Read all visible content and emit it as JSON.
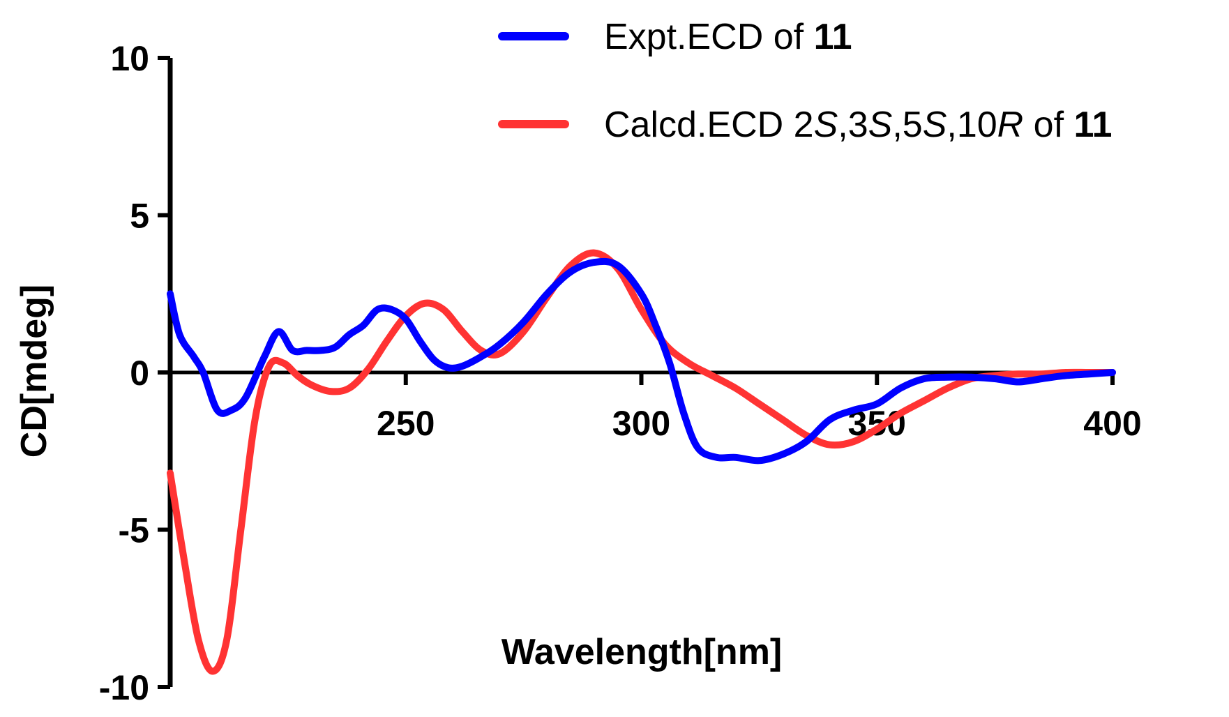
{
  "chart_data": {
    "type": "line",
    "xlabel": "Wavelength[nm]",
    "ylabel": "CD[mdeg]",
    "xlim": [
      200,
      400
    ],
    "ylim": [
      -10,
      10
    ],
    "xticks": [
      250,
      300,
      350,
      400
    ],
    "xtick_labels": [
      "250",
      "300",
      "350",
      "400"
    ],
    "yticks": [
      10,
      5,
      0,
      -5,
      -10
    ],
    "ytick_labels": [
      "10",
      "5",
      "0",
      "-5",
      "-10"
    ],
    "grid": false,
    "legend_position": "top-right",
    "series": [
      {
        "name": "Expt.ECD of 11",
        "legend": [
          {
            "text": "Expt.ECD of ",
            "style": "normal"
          },
          {
            "text": "11",
            "style": "bold"
          }
        ],
        "color": "#0000ff",
        "x": [
          200,
          202,
          205,
          207,
          210,
          213,
          216,
          220,
          223,
          226,
          229,
          232,
          235,
          238,
          241,
          244,
          247,
          250,
          253,
          256,
          259,
          262,
          266,
          270,
          275,
          280,
          285,
          290,
          295,
          300,
          303,
          306,
          309,
          312,
          316,
          320,
          325,
          330,
          335,
          340,
          345,
          350,
          355,
          360,
          365,
          370,
          375,
          380,
          385,
          390,
          395,
          400
        ],
        "y": [
          2.5,
          1.2,
          0.5,
          0.0,
          -1.2,
          -1.2,
          -0.8,
          0.5,
          1.3,
          0.7,
          0.7,
          0.7,
          0.8,
          1.2,
          1.5,
          2.0,
          2.0,
          1.7,
          1.0,
          0.4,
          0.15,
          0.2,
          0.5,
          0.9,
          1.6,
          2.5,
          3.2,
          3.5,
          3.4,
          2.5,
          1.5,
          0.3,
          -1.3,
          -2.4,
          -2.7,
          -2.7,
          -2.8,
          -2.6,
          -2.2,
          -1.5,
          -1.2,
          -1.0,
          -0.5,
          -0.2,
          -0.15,
          -0.15,
          -0.2,
          -0.3,
          -0.2,
          -0.1,
          -0.05,
          0.0
        ]
      },
      {
        "name": "Calcd.ECD 2S,3S,5S,10R of 11",
        "legend": [
          {
            "text": "Calcd.ECD 2",
            "style": "normal"
          },
          {
            "text": "S",
            "style": "italic"
          },
          {
            "text": ",3",
            "style": "normal"
          },
          {
            "text": "S",
            "style": "italic"
          },
          {
            "text": ",5",
            "style": "normal"
          },
          {
            "text": "S",
            "style": "italic"
          },
          {
            "text": ",10",
            "style": "normal"
          },
          {
            "text": "R",
            "style": "italic"
          },
          {
            "text": " of ",
            "style": "normal"
          },
          {
            "text": "11",
            "style": "bold"
          }
        ],
        "color": "#ff3333",
        "x": [
          200,
          203,
          206,
          209,
          212,
          215,
          218,
          221,
          224,
          227,
          230,
          234,
          238,
          242,
          246,
          250,
          254,
          258,
          262,
          266,
          270,
          275,
          280,
          285,
          290,
          295,
          300,
          305,
          310,
          315,
          320,
          325,
          330,
          335,
          340,
          345,
          350,
          355,
          360,
          365,
          370,
          375,
          380,
          385,
          390,
          395,
          400
        ],
        "y": [
          -3.2,
          -6.0,
          -8.5,
          -9.5,
          -8.5,
          -5.0,
          -1.5,
          0.2,
          0.3,
          -0.1,
          -0.4,
          -0.6,
          -0.5,
          0.1,
          1.0,
          1.8,
          2.2,
          2.0,
          1.3,
          0.7,
          0.6,
          1.3,
          2.4,
          3.4,
          3.8,
          3.3,
          2.0,
          0.9,
          0.3,
          -0.1,
          -0.5,
          -1.0,
          -1.5,
          -2.0,
          -2.3,
          -2.2,
          -1.8,
          -1.3,
          -0.9,
          -0.5,
          -0.2,
          -0.1,
          -0.05,
          -0.05,
          0.0,
          0.0,
          0.0
        ]
      }
    ]
  }
}
